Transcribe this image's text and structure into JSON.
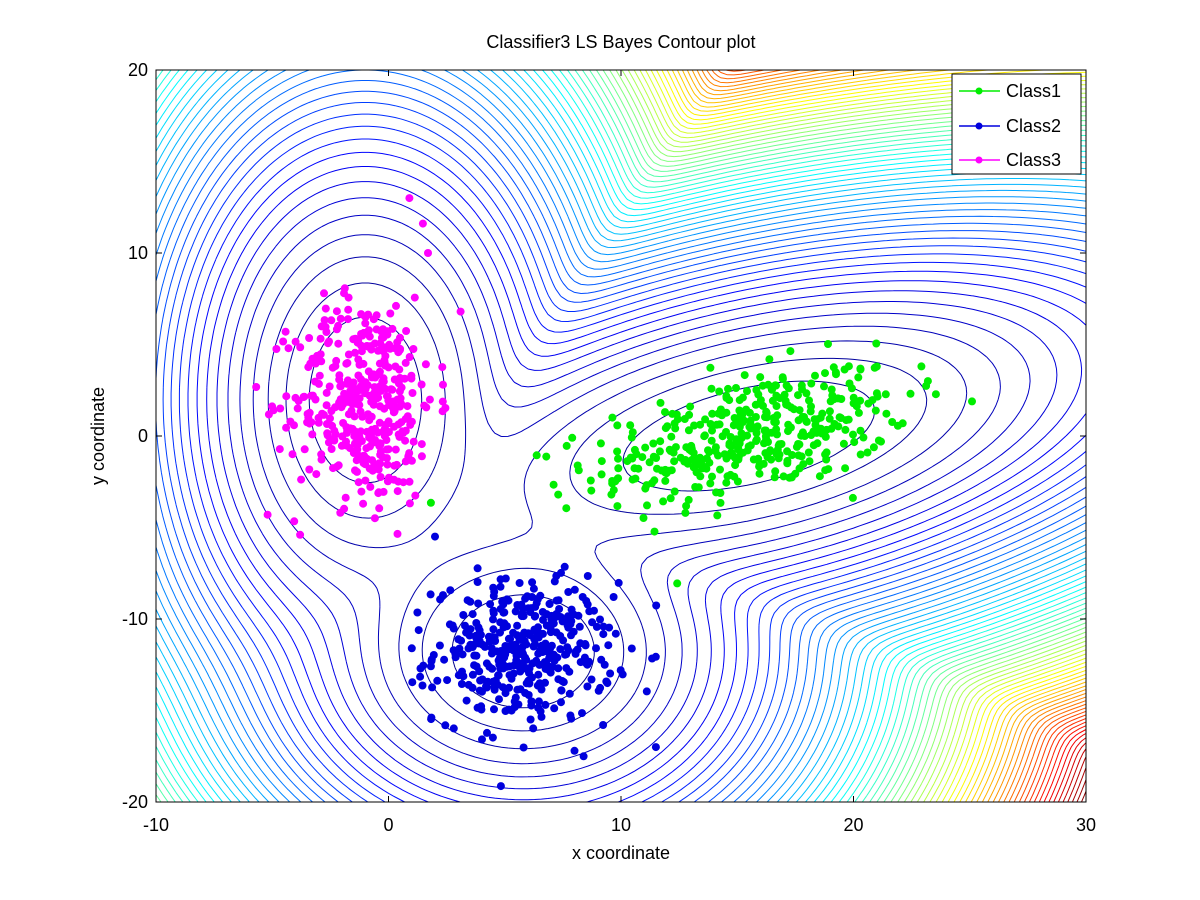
{
  "chart_data": {
    "type": "scatter",
    "title": "Classifier3 LS Bayes Contour plot",
    "xlabel": "x coordinate",
    "ylabel": "y coordinate",
    "xlim": [
      -10,
      30
    ],
    "ylim": [
      -20,
      20
    ],
    "xticks": [
      -10,
      0,
      10,
      20,
      30
    ],
    "yticks": [
      -20,
      -10,
      0,
      10,
      20
    ],
    "grid": false,
    "legend_position": "top-right",
    "background_contours": {
      "type": "contour",
      "colormap": "jet"
    },
    "series": [
      {
        "name": "Class1",
        "color": "#00ee00",
        "distribution": {
          "mean": [
            15.5,
            0.0
          ],
          "std": [
            3.5,
            1.6
          ],
          "rotation_deg": 18,
          "count": 400
        },
        "extra_points": [
          [
            7.3,
            -3.2
          ],
          [
            7.9,
            -0.1
          ],
          [
            21.0,
            3.8
          ],
          [
            23.2,
            3.0
          ],
          [
            20.6,
            -0.9
          ]
        ]
      },
      {
        "name": "Class2",
        "color": "#0000dd",
        "distribution": {
          "mean": [
            5.8,
            -11.8
          ],
          "std": [
            1.9,
            1.9
          ],
          "rotation_deg": 0,
          "count": 400
        },
        "extra_points": [
          [
            2.0,
            -5.5
          ],
          [
            11.5,
            -17.0
          ],
          [
            8.0,
            -17.2
          ],
          [
            1.0,
            -11.6
          ],
          [
            9.3,
            -12.5
          ]
        ]
      },
      {
        "name": "Class3",
        "color": "#ff00ff",
        "distribution": {
          "mean": [
            -1.0,
            2.0
          ],
          "std": [
            1.5,
            2.8
          ],
          "rotation_deg": 0,
          "count": 400
        },
        "extra_points": [
          [
            0.9,
            13.0
          ],
          [
            -5.2,
            -4.3
          ],
          [
            3.1,
            6.8
          ],
          [
            -3.8,
            -5.4
          ],
          [
            1.7,
            10.0
          ],
          [
            -4.3,
            4.8
          ]
        ]
      }
    ]
  }
}
